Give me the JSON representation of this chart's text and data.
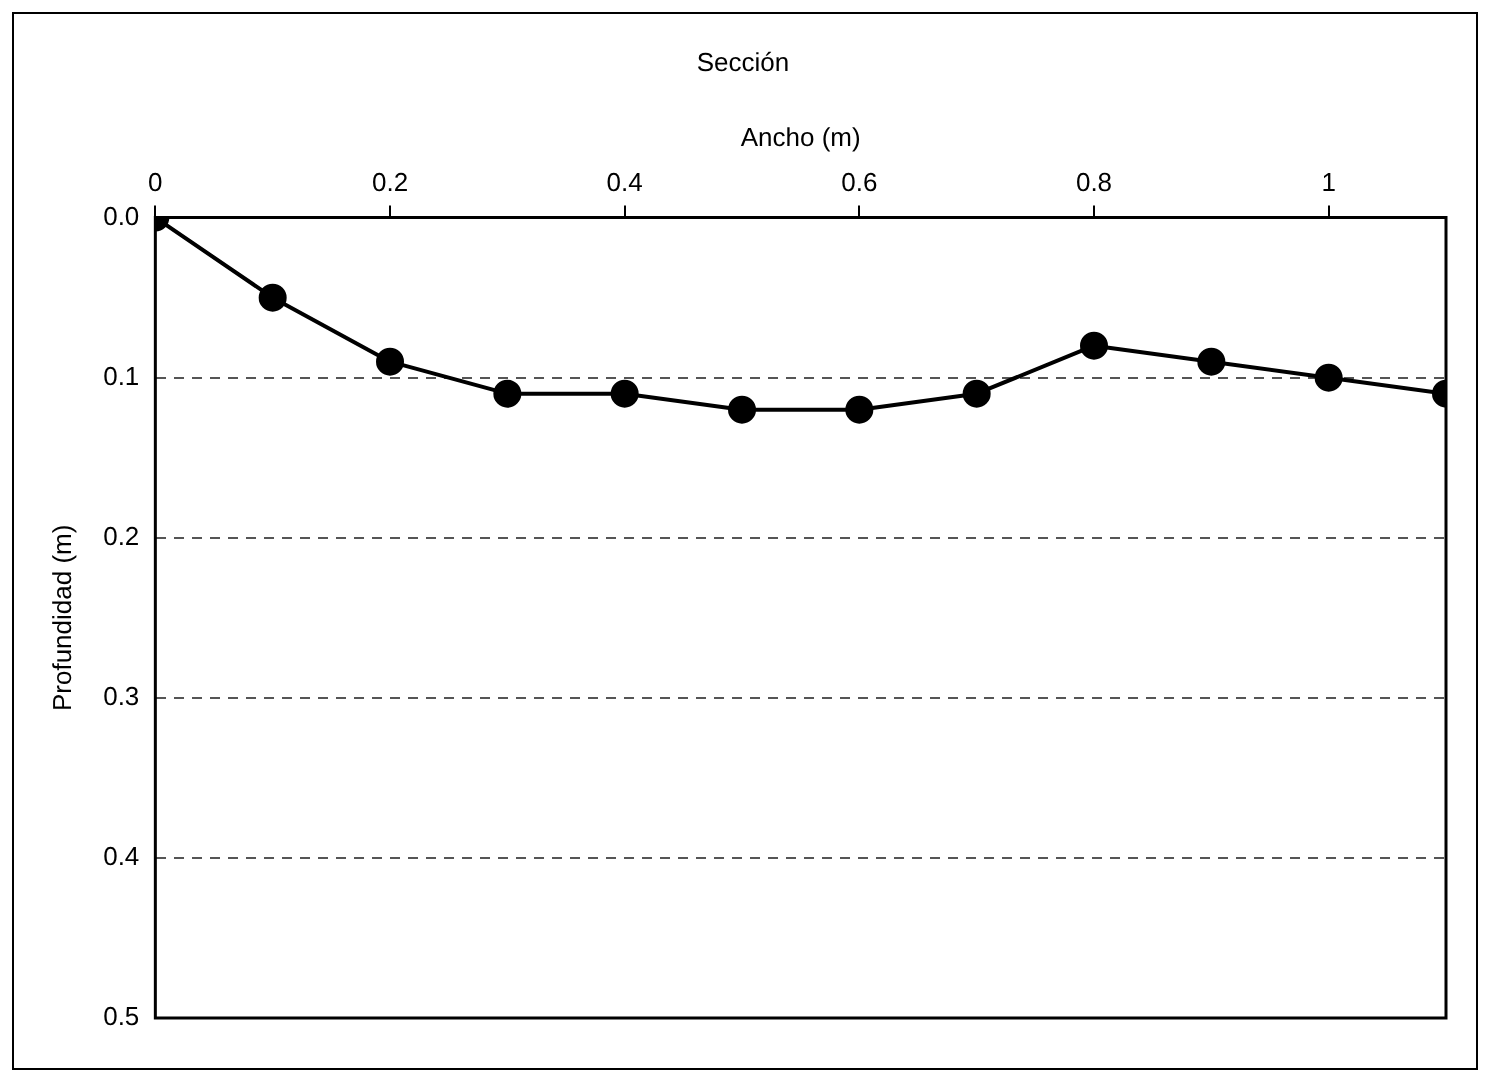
{
  "chart_data": {
    "type": "line",
    "title": "Sección",
    "xlabel": "Ancho (m)",
    "ylabel": "Profundidad (m)",
    "x": [
      0,
      0.1,
      0.2,
      0.3,
      0.4,
      0.5,
      0.6,
      0.7,
      0.8,
      0.9,
      1.0,
      1.1
    ],
    "series": [
      {
        "color": "#000000",
        "values": [
          0,
          0.05,
          0.09,
          0.11,
          0.11,
          0.12,
          0.12,
          0.11,
          0.08,
          0.09,
          0.1,
          0.11
        ]
      }
    ],
    "xlim": [
      0,
      1.1
    ],
    "xticks": [
      0,
      0.2,
      0.4,
      0.6,
      0.8,
      1
    ],
    "ylim": [
      0.5,
      0
    ],
    "yticks": [
      {
        "value": 0,
        "label": "0.0"
      },
      {
        "value": 0.1,
        "label": "0.1"
      },
      {
        "value": 0.2,
        "label": "0.2"
      },
      {
        "value": 0.3,
        "label": "0.3"
      },
      {
        "value": 0.4,
        "label": "0.4"
      },
      {
        "value": 0.5,
        "label": "0.5"
      }
    ],
    "grid": "y",
    "line_style": "solid",
    "marker": "circle",
    "legend": false
  }
}
